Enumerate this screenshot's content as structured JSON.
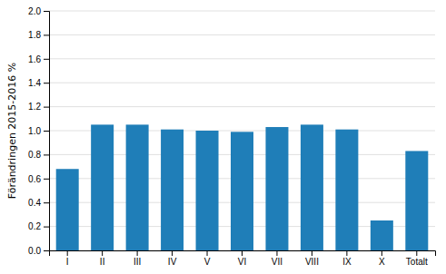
{
  "chart_data": {
    "type": "bar",
    "categories": [
      "I",
      "II",
      "III",
      "IV",
      "V",
      "VI",
      "VII",
      "VIII",
      "IX",
      "X",
      "Totalt"
    ],
    "values": [
      0.68,
      1.05,
      1.05,
      1.01,
      1.0,
      0.99,
      1.03,
      1.05,
      1.01,
      0.25,
      0.83
    ],
    "color": "#1f7eb8",
    "ylabel": "Förändringen 2015-2016 %",
    "ylim": [
      0.0,
      2.0
    ],
    "yticks": [
      {
        "value": 0.0,
        "label": "0.0"
      },
      0.2,
      0.4,
      0.6,
      0.8,
      {
        "value": 1.0,
        "label": "1.0"
      },
      1.2,
      1.4,
      1.6,
      1.8,
      {
        "value": 2.0,
        "label": "2.0"
      }
    ],
    "grid": true
  }
}
